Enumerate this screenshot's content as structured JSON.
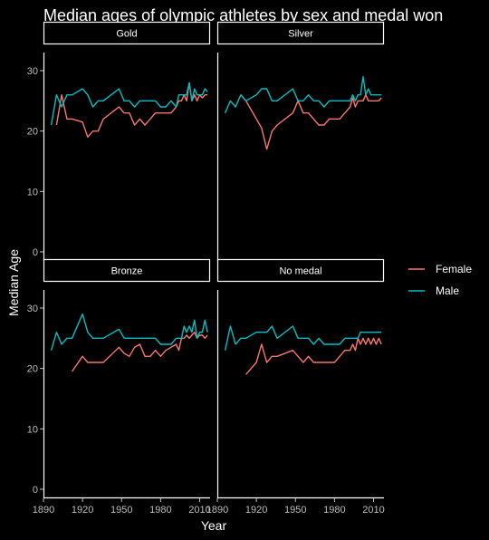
{
  "chart_data": {
    "type": "line",
    "title": "Median ages of olympic athletes by sex and medal won",
    "xlabel": "Year",
    "ylabel": "Median Age",
    "xlim": [
      1890,
      2018
    ],
    "ylim": [
      -1.5,
      33
    ],
    "x_ticks": [
      1890,
      1920,
      1950,
      1980,
      2010
    ],
    "x_tick_labels": [
      "1890",
      "1920",
      "1950",
      "1980",
      "2010"
    ],
    "y_ticks": [
      0,
      10,
      20,
      30
    ],
    "y_tick_labels": [
      "0",
      "10",
      "20",
      "30"
    ],
    "legend_position": "right",
    "colors": {
      "Female": "#F8766D",
      "Male": "#00BFC4"
    },
    "series_names": [
      "Female",
      "Male"
    ],
    "facets": [
      {
        "label": "Gold",
        "series": [
          {
            "name": "Female",
            "x": [
              1900,
              1904,
              1908,
              1912,
              1920,
              1924,
              1928,
              1932,
              1936,
              1948,
              1952,
              1956,
              1960,
              1964,
              1968,
              1972,
              1976,
              1980,
              1984,
              1988,
              1992,
              1994,
              1996,
              1998,
              2000,
              2002,
              2004,
              2006,
              2008,
              2010,
              2012,
              2014,
              2016
            ],
            "y": [
              21,
              26,
              22,
              22,
              21.5,
              19,
              20,
              20,
              22,
              24,
              23,
              23,
              21,
              22,
              21,
              22,
              23,
              23,
              23,
              23,
              24,
              25,
              25,
              26,
              25,
              28,
              25,
              26,
              25,
              26,
              25.5,
              26,
              26
            ]
          },
          {
            "name": "Male",
            "x": [
              1896,
              1900,
              1904,
              1908,
              1912,
              1920,
              1924,
              1928,
              1932,
              1936,
              1948,
              1952,
              1956,
              1960,
              1964,
              1968,
              1972,
              1976,
              1980,
              1984,
              1988,
              1992,
              1994,
              1996,
              1998,
              2000,
              2002,
              2004,
              2006,
              2008,
              2010,
              2012,
              2014,
              2016
            ],
            "y": [
              21,
              26,
              24,
              26,
              26,
              27,
              26,
              24,
              25,
              25,
              27,
              25,
              25,
              24,
              25,
              25,
              25,
              25,
              24,
              24,
              25,
              24,
              26,
              26,
              26,
              26,
              28,
              25,
              27,
              26,
              26,
              26,
              27,
              26.5
            ]
          }
        ]
      },
      {
        "label": "Silver",
        "series": [
          {
            "name": "Female",
            "x": [
              1908,
              1912,
              1920,
              1924,
              1928,
              1932,
              1936,
              1948,
              1952,
              1956,
              1960,
              1964,
              1968,
              1972,
              1976,
              1980,
              1984,
              1988,
              1992,
              1994,
              1996,
              1998,
              2000,
              2002,
              2004,
              2006,
              2008,
              2010,
              2012,
              2014,
              2016
            ],
            "y": [
              26,
              25,
              22,
              20.5,
              17,
              20,
              21,
              23,
              25,
              23,
              23,
              22,
              21,
              21,
              22,
              22,
              22,
              23,
              24,
              25.5,
              24,
              25,
              25,
              25,
              26,
              25,
              25,
              25,
              25,
              25,
              25.5
            ]
          },
          {
            "name": "Male",
            "x": [
              1896,
              1900,
              1904,
              1908,
              1912,
              1920,
              1924,
              1928,
              1932,
              1936,
              1948,
              1952,
              1956,
              1960,
              1964,
              1968,
              1972,
              1976,
              1980,
              1984,
              1988,
              1992,
              1994,
              1996,
              1998,
              2000,
              2002,
              2004,
              2006,
              2008,
              2010,
              2012,
              2014,
              2016
            ],
            "y": [
              23,
              25,
              24,
              26,
              25,
              26,
              27,
              27,
              25,
              25,
              27,
              25,
              25,
              26,
              25,
              25,
              24,
              25,
              25,
              25,
              25,
              25,
              26,
              25,
              26,
              26,
              29,
              26,
              27,
              26,
              26,
              26,
              26,
              26
            ]
          }
        ]
      },
      {
        "label": "Bronze",
        "series": [
          {
            "name": "Female",
            "x": [
              1912,
              1920,
              1924,
              1928,
              1932,
              1936,
              1948,
              1952,
              1956,
              1960,
              1964,
              1968,
              1972,
              1976,
              1980,
              1984,
              1988,
              1992,
              1994,
              1996,
              1998,
              2000,
              2002,
              2004,
              2006,
              2008,
              2010,
              2012,
              2014,
              2016
            ],
            "y": [
              19.5,
              22,
              21,
              21,
              21,
              21,
              23.5,
              22.5,
              22,
              23.5,
              24,
              22,
              22,
              23,
              22,
              23,
              23.5,
              24,
              23,
              25,
              25,
              25.5,
              25,
              25.5,
              26,
              25,
              25.5,
              25.5,
              25,
              25.5
            ]
          },
          {
            "name": "Male",
            "x": [
              1896,
              1900,
              1904,
              1908,
              1912,
              1920,
              1924,
              1928,
              1932,
              1936,
              1948,
              1952,
              1956,
              1960,
              1964,
              1968,
              1972,
              1976,
              1980,
              1984,
              1988,
              1992,
              1994,
              1996,
              1998,
              2000,
              2002,
              2004,
              2006,
              2008,
              2010,
              2012,
              2014,
              2016
            ],
            "y": [
              23,
              26,
              24,
              25,
              25,
              29,
              26,
              25,
              25,
              25,
              26.5,
              25,
              25,
              25,
              25,
              25,
              25,
              25,
              24,
              24,
              24,
              25,
              25,
              25,
              27,
              26,
              27,
              26,
              28,
              25,
              26,
              26,
              28,
              26
            ]
          }
        ]
      },
      {
        "label": "No medal",
        "series": [
          {
            "name": "Female",
            "x": [
              1912,
              1920,
              1924,
              1928,
              1932,
              1936,
              1948,
              1952,
              1956,
              1960,
              1964,
              1968,
              1972,
              1976,
              1980,
              1984,
              1988,
              1992,
              1994,
              1996,
              1998,
              2000,
              2002,
              2004,
              2006,
              2008,
              2010,
              2012,
              2014,
              2016
            ],
            "y": [
              19,
              21,
              24,
              21,
              22,
              22,
              23,
              22,
              21,
              22,
              21,
              21,
              21,
              21,
              21,
              22,
              23,
              23,
              24,
              23,
              25,
              24,
              25,
              24,
              25,
              24,
              25,
              24,
              25,
              24
            ]
          },
          {
            "name": "Male",
            "x": [
              1896,
              1900,
              1904,
              1908,
              1912,
              1920,
              1924,
              1928,
              1932,
              1936,
              1948,
              1952,
              1956,
              1960,
              1964,
              1968,
              1972,
              1976,
              1980,
              1984,
              1988,
              1992,
              1994,
              1996,
              1998,
              2000,
              2002,
              2004,
              2006,
              2008,
              2010,
              2012,
              2014,
              2016
            ],
            "y": [
              23,
              27,
              24,
              25,
              25,
              26,
              26,
              26,
              27,
              25,
              27,
              25,
              25,
              25,
              24,
              25,
              24,
              24,
              24,
              24,
              25,
              25,
              25,
              25,
              25,
              26,
              26,
              26,
              26,
              26,
              26,
              26,
              26,
              26
            ]
          }
        ]
      }
    ]
  }
}
